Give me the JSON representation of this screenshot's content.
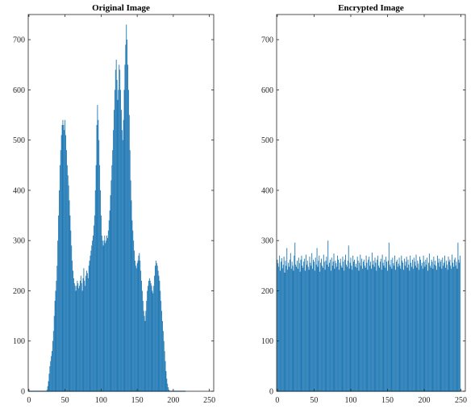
{
  "chart_data": [
    {
      "type": "bar",
      "title": "Original Image",
      "xlabel": "",
      "ylabel": "",
      "xlim": [
        -1,
        256
      ],
      "ylim": [
        0,
        750
      ],
      "xticks": [
        0,
        50,
        100,
        150,
        200,
        250
      ],
      "yticks": [
        0,
        100,
        200,
        300,
        400,
        500,
        600,
        700
      ],
      "bar_color": "#1f78b4",
      "x_start": 0,
      "x_step": 1,
      "values": [
        0,
        0,
        0,
        0,
        0,
        0,
        0,
        0,
        0,
        0,
        0,
        0,
        0,
        0,
        0,
        0,
        0,
        0,
        0,
        0,
        0,
        0,
        0,
        0,
        0,
        3,
        10,
        20,
        35,
        50,
        60,
        70,
        80,
        100,
        120,
        150,
        180,
        200,
        220,
        250,
        300,
        350,
        400,
        450,
        480,
        510,
        530,
        540,
        530,
        520,
        540,
        510,
        480,
        450,
        430,
        410,
        380,
        350,
        320,
        290,
        260,
        240,
        225,
        215,
        210,
        200,
        210,
        220,
        215,
        205,
        210,
        220,
        230,
        215,
        200,
        225,
        245,
        220,
        210,
        230,
        240,
        235,
        225,
        250,
        260,
        270,
        280,
        290,
        300,
        310,
        330,
        350,
        400,
        450,
        530,
        570,
        540,
        500,
        450,
        400,
        350,
        310,
        300,
        290,
        300,
        310,
        295,
        300,
        310,
        305,
        320,
        340,
        360,
        390,
        420,
        450,
        480,
        520,
        560,
        600,
        640,
        660,
        620,
        580,
        600,
        650,
        640,
        600,
        560,
        520,
        500,
        540,
        600,
        650,
        690,
        730,
        700,
        650,
        600,
        550,
        480,
        420,
        380,
        340,
        320,
        300,
        280,
        260,
        250,
        245,
        255,
        260,
        270,
        275,
        260,
        240,
        220,
        200,
        180,
        160,
        150,
        140,
        160,
        180,
        200,
        210,
        220,
        225,
        220,
        215,
        210,
        200,
        195,
        210,
        230,
        250,
        260,
        255,
        250,
        240,
        230,
        220,
        200,
        180,
        160,
        140,
        120,
        100,
        80,
        60,
        40,
        25,
        15,
        8,
        3,
        1,
        0,
        0,
        0,
        0,
        0,
        0,
        0,
        0,
        0,
        0,
        0,
        0,
        0,
        0,
        0,
        0,
        0,
        0,
        0,
        0,
        0,
        0
      ]
    },
    {
      "type": "bar",
      "title": "Encrypted Image",
      "xlabel": "",
      "ylabel": "",
      "xlim": [
        -1,
        256
      ],
      "ylim": [
        0,
        750
      ],
      "xticks": [
        0,
        50,
        100,
        150,
        200,
        250
      ],
      "yticks": [
        0,
        100,
        200,
        300,
        400,
        500,
        600,
        700
      ],
      "bar_color": "#1f78b4",
      "x_start": 0,
      "x_step": 1,
      "values": [
        262,
        255,
        248,
        270,
        240,
        258,
        265,
        245,
        252,
        268,
        236,
        260,
        250,
        285,
        242,
        256,
        248,
        262,
        275,
        244,
        258,
        250,
        240,
        270,
        296,
        252,
        248,
        260,
        244,
        266,
        255,
        238,
        262,
        270,
        250,
        246,
        258,
        264,
        240,
        272,
        252,
        260,
        248,
        242,
        268,
        256,
        250,
        275,
        244,
        262,
        258,
        240,
        266,
        252,
        285,
        248,
        260,
        270,
        238,
        256,
        264,
        250,
        246,
        272,
        258,
        242,
        260,
        268,
        252,
        300,
        248,
        256,
        262,
        240,
        266,
        250,
        258,
        274,
        244,
        260,
        255,
        248,
        270,
        262,
        242,
        256,
        264,
        250,
        246,
        268,
        258,
        240,
        262,
        272,
        252,
        248,
        260,
        290,
        244,
        256,
        266,
        250,
        242,
        270,
        258,
        262,
        248,
        254,
        246,
        268,
        260,
        240,
        256,
        272,
        250,
        264,
        244,
        258,
        262,
        250,
        246,
        270,
        256,
        242,
        262,
        268,
        250,
        258,
        244,
        276,
        252,
        260,
        248,
        266,
        256,
        240,
        262,
        270,
        250,
        246,
        258,
        264,
        242,
        272,
        256,
        250,
        262,
        246,
        268,
        258,
        240,
        260,
        296,
        252,
        248,
        262,
        244,
        266,
        255,
        250,
        270,
        242,
        258,
        262,
        248,
        254,
        266,
        250,
        244,
        270,
        260,
        256,
        242,
        264,
        250,
        258,
        268,
        246,
        262,
        252,
        240,
        270,
        256,
        248,
        262,
        244,
        266,
        258,
        250,
        272,
        246,
        260,
        254,
        242,
        268,
        262,
        250,
        256,
        244,
        270,
        258,
        248,
        262,
        252,
        266,
        240,
        256,
        274,
        250,
        246,
        262,
        258,
        244,
        268,
        252,
        260,
        250,
        242,
        270,
        256,
        264,
        248,
        258,
        262,
        244,
        266,
        250,
        256,
        270,
        246,
        260,
        252,
        242,
        268,
        258,
        262,
        250,
        244,
        272,
        256,
        248,
        262,
        266,
        250,
        258,
        244,
        296,
        262,
        256,
        270
      ]
    }
  ]
}
